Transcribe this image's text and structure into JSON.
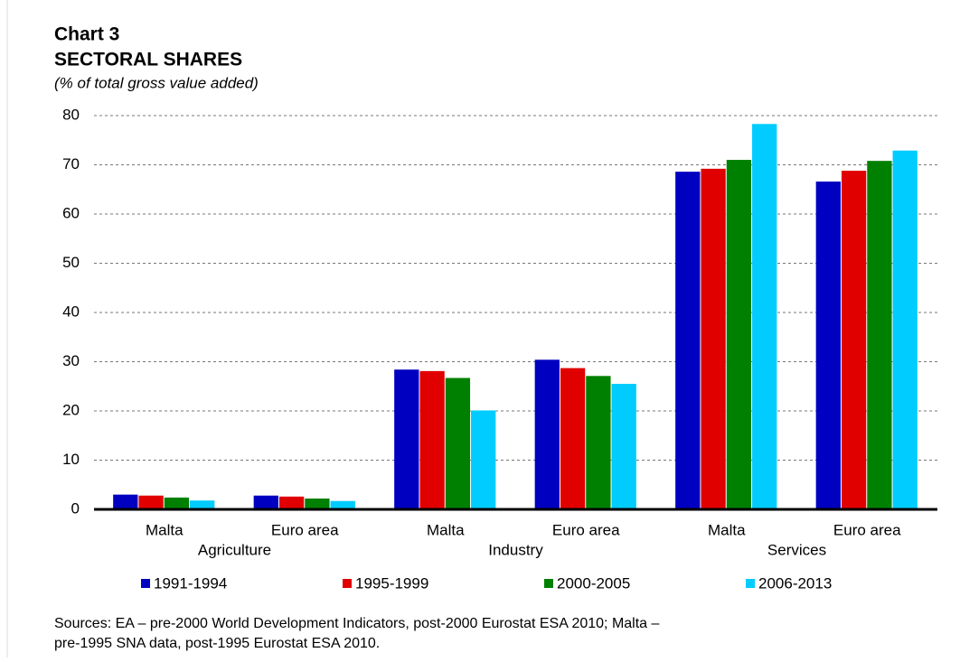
{
  "chart_data": {
    "type": "bar",
    "title": "Chart 3",
    "subtitle": "SECTORAL SHARES",
    "y_label": "(% of total gross value added)",
    "categories": [
      "Malta",
      "Euro area",
      "Malta",
      "Euro area",
      "Malta",
      "Euro area"
    ],
    "groups": [
      "Agriculture",
      "Industry",
      "Services"
    ],
    "series": [
      {
        "name": "1991-1994",
        "color": "#0000c0",
        "values": [
          3.0,
          2.8,
          28.4,
          30.4,
          68.6,
          66.6
        ]
      },
      {
        "name": "1995-1999",
        "color": "#e00000",
        "values": [
          2.8,
          2.6,
          28.1,
          28.7,
          69.2,
          68.8
        ]
      },
      {
        "name": "2000-2005",
        "color": "#008000",
        "values": [
          2.4,
          2.2,
          26.7,
          27.1,
          71.0,
          70.8
        ]
      },
      {
        "name": "2006-2013",
        "color": "#00ccff",
        "values": [
          1.8,
          1.7,
          20.1,
          25.5,
          78.3,
          72.9
        ]
      }
    ],
    "ylim": [
      0,
      80
    ],
    "yticks": [
      0,
      10,
      20,
      30,
      40,
      50,
      60,
      70,
      80
    ],
    "grid": true,
    "legend": "bottom",
    "source": [
      "Sources: EA – pre-2000 World Development Indicators, post-2000 Eurostat ESA 2010; Malta –",
      "pre-1995 SNA data, post-1995 Eurostat ESA 2010."
    ]
  }
}
